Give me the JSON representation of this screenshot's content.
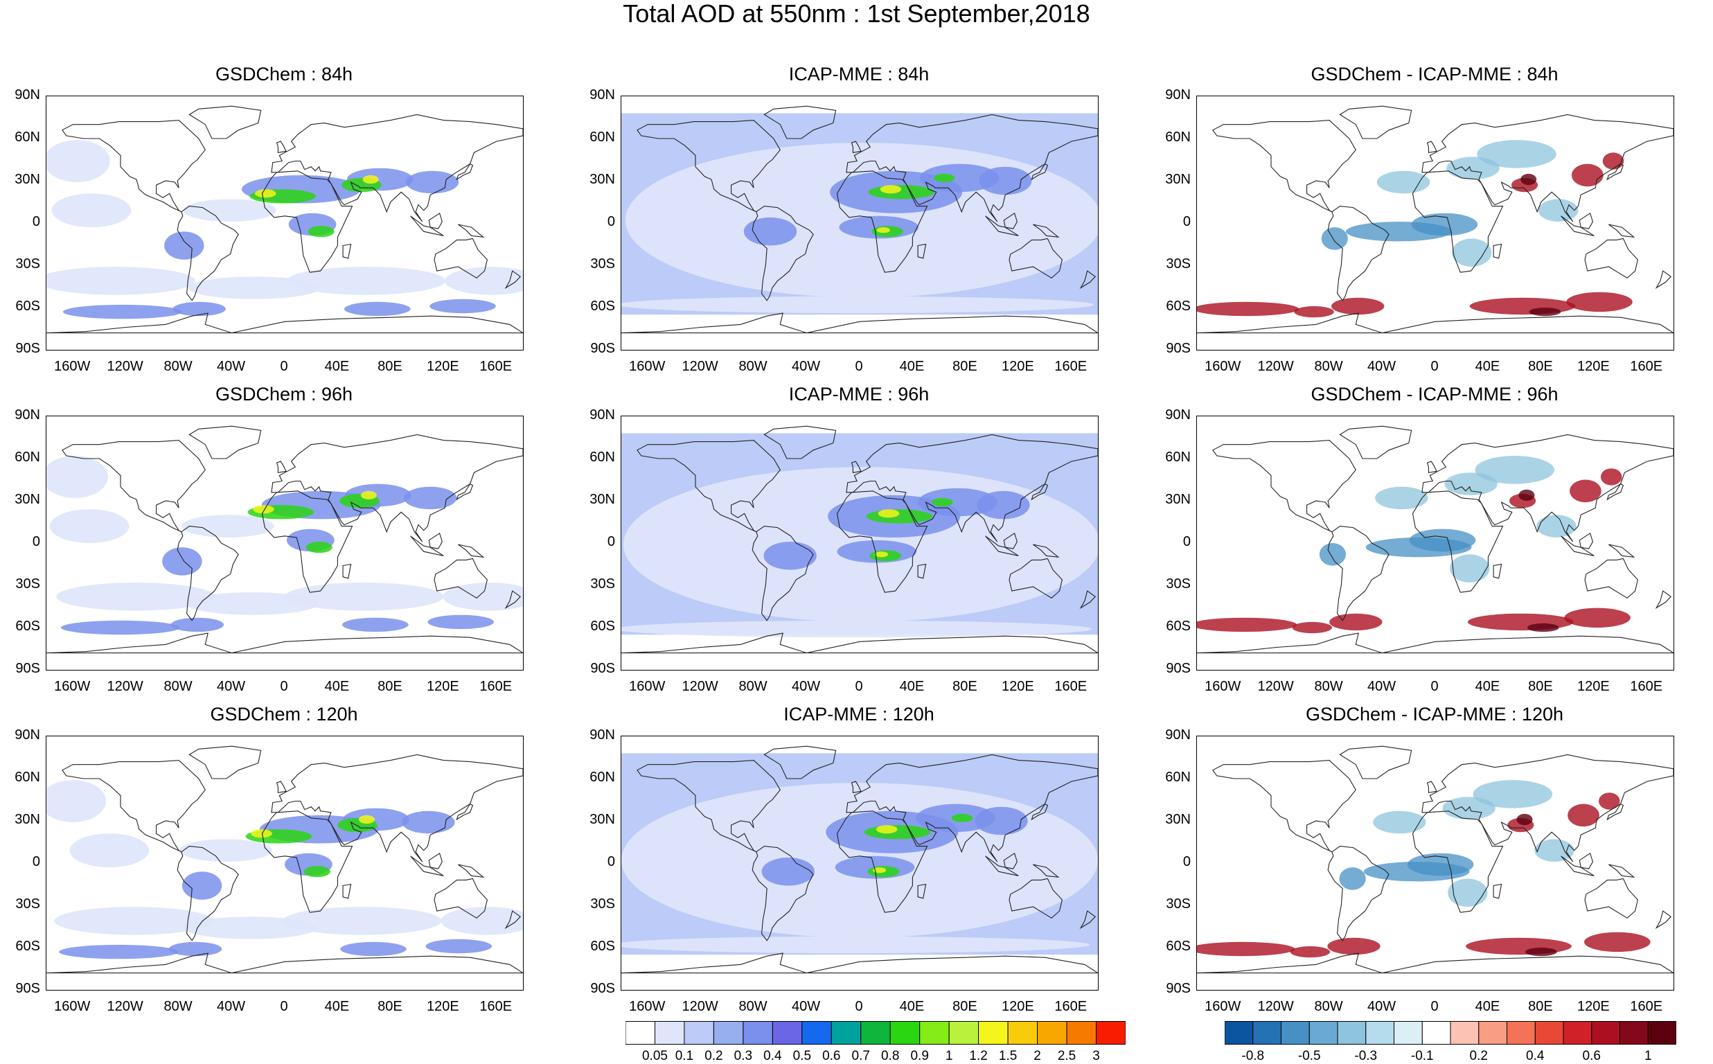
{
  "title": "Total AOD at 550nm : 1st September,2018",
  "lat_labels": [
    "90N",
    "60N",
    "30N",
    "0",
    "30S",
    "60S",
    "90S"
  ],
  "lon_labels": [
    "160W",
    "120W",
    "80W",
    "40W",
    "0",
    "40E",
    "80E",
    "120E",
    "160E"
  ],
  "panel_titles": [
    [
      "GSDChem : 84h",
      "ICAP-MME : 84h",
      "GSDChem - ICAP-MME : 84h"
    ],
    [
      "GSDChem : 96h",
      "ICAP-MME : 96h",
      "GSDChem - ICAP-MME : 96h"
    ],
    [
      "GSDChem : 120h",
      "ICAP-MME : 120h",
      "GSDChem - ICAP-MME : 120h"
    ]
  ],
  "aod_colorbar": {
    "colors": [
      "#ffffff",
      "#dfe6fb",
      "#bccbf7",
      "#98afef",
      "#7a90ec",
      "#6a66e6",
      "#1469ef",
      "#00a29d",
      "#0eb63c",
      "#2ad512",
      "#86ec18",
      "#b8f23c",
      "#f4f51a",
      "#f8cc0a",
      "#f7a700",
      "#f77a00",
      "#f91d00"
    ],
    "labels": [
      "0.05",
      "0.1",
      "0.2",
      "0.3",
      "0.4",
      "0.5",
      "0.6",
      "0.7",
      "0.8",
      "0.9",
      "1",
      "1.2",
      "1.5",
      "2",
      "2.5",
      "3"
    ]
  },
  "diff_colorbar": {
    "colors": [
      "#0b55a0",
      "#2471b4",
      "#4690c6",
      "#6aa9d3",
      "#8ec4dd",
      "#b5dcec",
      "#dbeff7",
      "#ffffff",
      "#fcc3b4",
      "#f99d85",
      "#f47358",
      "#e94836",
      "#cf2127",
      "#ab1020",
      "#85081a",
      "#5c0010"
    ],
    "labels": [
      "-0.8",
      "-0.5",
      "-0.3",
      "-0.1",
      "0.2",
      "0.4",
      "0.6",
      "1"
    ]
  },
  "colors": {
    "aod_low": "#dfe6fb",
    "aod_mid": "#7a90ec",
    "aod_high": "#2ad512",
    "aod_peak": "#f4f51a",
    "diff_neg": "#8ec4dd",
    "diff_pos": "#e94836",
    "coast": "#222222"
  }
}
